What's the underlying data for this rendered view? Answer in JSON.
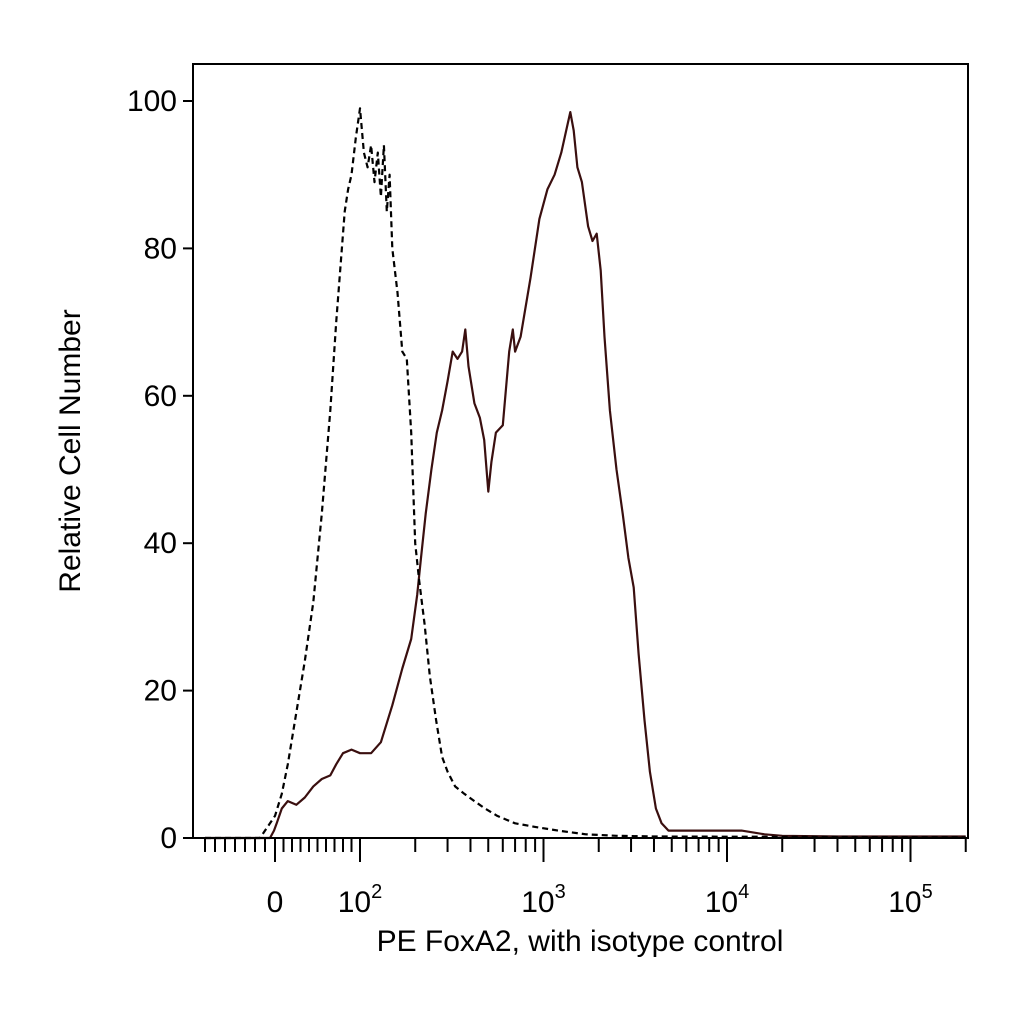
{
  "chart_data": {
    "type": "line",
    "title": "",
    "xlabel": "PE FoxA2, with isotype control",
    "ylabel": "Relative Cell Number",
    "x_scale": "biexponential",
    "xlim": [
      -70,
      200000
    ],
    "ylim": [
      0,
      105
    ],
    "grid": false,
    "legend": "none",
    "y_ticks": [
      "0",
      "20",
      "40",
      "60",
      "80",
      "100"
    ],
    "y_tick_values": [
      0,
      20,
      40,
      60,
      80,
      100
    ],
    "x_ticks": [
      {
        "base": "0",
        "exp": "",
        "value": 0
      },
      {
        "base": "10",
        "exp": "2",
        "value": 100
      },
      {
        "base": "10",
        "exp": "3",
        "value": 1000
      },
      {
        "base": "10",
        "exp": "4",
        "value": 10000
      },
      {
        "base": "10",
        "exp": "5",
        "value": 100000
      }
    ],
    "series": [
      {
        "style": "solid",
        "color": "#3a0f0f",
        "points": [
          [
            -70,
            0
          ],
          [
            -5,
            0
          ],
          [
            -1,
            1
          ],
          [
            2,
            2
          ],
          [
            8,
            4
          ],
          [
            15,
            5
          ],
          [
            25,
            4.5
          ],
          [
            35,
            5.5
          ],
          [
            45,
            7
          ],
          [
            55,
            8
          ],
          [
            65,
            8.5
          ],
          [
            72,
            10
          ],
          [
            80,
            11.5
          ],
          [
            90,
            12
          ],
          [
            100,
            11.5
          ],
          [
            115,
            11.5
          ],
          [
            130,
            13
          ],
          [
            150,
            18
          ],
          [
            170,
            23
          ],
          [
            190,
            27
          ],
          [
            205,
            33
          ],
          [
            215,
            38
          ],
          [
            228,
            44
          ],
          [
            245,
            50
          ],
          [
            262,
            55
          ],
          [
            280,
            58
          ],
          [
            300,
            62
          ],
          [
            320,
            66
          ],
          [
            340,
            65
          ],
          [
            360,
            66
          ],
          [
            375,
            69
          ],
          [
            390,
            64
          ],
          [
            420,
            59
          ],
          [
            450,
            57
          ],
          [
            475,
            54
          ],
          [
            500,
            47
          ],
          [
            520,
            51
          ],
          [
            550,
            55
          ],
          [
            600,
            56
          ],
          [
            650,
            66
          ],
          [
            680,
            69
          ],
          [
            700,
            66
          ],
          [
            750,
            68
          ],
          [
            850,
            76
          ],
          [
            950,
            84
          ],
          [
            1050,
            88
          ],
          [
            1150,
            90
          ],
          [
            1250,
            93
          ],
          [
            1330,
            96
          ],
          [
            1400,
            98.5
          ],
          [
            1460,
            96
          ],
          [
            1530,
            91
          ],
          [
            1620,
            89
          ],
          [
            1750,
            83
          ],
          [
            1850,
            81
          ],
          [
            1950,
            82
          ],
          [
            2050,
            77
          ],
          [
            2150,
            68
          ],
          [
            2300,
            58
          ],
          [
            2500,
            50
          ],
          [
            2700,
            44
          ],
          [
            2900,
            38
          ],
          [
            3100,
            34
          ],
          [
            3300,
            25
          ],
          [
            3550,
            16
          ],
          [
            3800,
            9
          ],
          [
            4100,
            4
          ],
          [
            4400,
            2
          ],
          [
            4800,
            1
          ],
          [
            5500,
            1
          ],
          [
            8000,
            1
          ],
          [
            12000,
            1
          ],
          [
            16000,
            0.5
          ],
          [
            20000,
            0.3
          ],
          [
            40000,
            0.2
          ],
          [
            200000,
            0.2
          ]
        ]
      },
      {
        "style": "dashed",
        "color": "#000000",
        "points": [
          [
            -70,
            0
          ],
          [
            -15,
            0
          ],
          [
            -10,
            1
          ],
          [
            -5,
            2
          ],
          [
            0,
            3
          ],
          [
            8,
            6
          ],
          [
            15,
            10
          ],
          [
            25,
            17
          ],
          [
            35,
            24
          ],
          [
            45,
            32
          ],
          [
            55,
            44
          ],
          [
            65,
            58
          ],
          [
            72,
            70
          ],
          [
            78,
            79
          ],
          [
            82,
            85
          ],
          [
            86,
            88
          ],
          [
            90,
            90
          ],
          [
            95,
            95
          ],
          [
            100,
            99
          ],
          [
            105,
            93
          ],
          [
            110,
            91
          ],
          [
            115,
            94
          ],
          [
            120,
            89
          ],
          [
            125,
            93
          ],
          [
            130,
            87
          ],
          [
            135,
            94
          ],
          [
            140,
            85
          ],
          [
            145,
            90
          ],
          [
            150,
            80
          ],
          [
            160,
            74
          ],
          [
            170,
            66
          ],
          [
            180,
            65
          ],
          [
            190,
            55
          ],
          [
            200,
            40
          ],
          [
            210,
            35
          ],
          [
            225,
            29
          ],
          [
            240,
            22
          ],
          [
            260,
            16
          ],
          [
            280,
            11
          ],
          [
            300,
            9
          ],
          [
            330,
            7
          ],
          [
            370,
            6
          ],
          [
            420,
            5
          ],
          [
            480,
            4
          ],
          [
            560,
            3
          ],
          [
            700,
            2
          ],
          [
            900,
            1.5
          ],
          [
            1200,
            1
          ],
          [
            1700,
            0.5
          ],
          [
            2500,
            0.3
          ],
          [
            4000,
            0.2
          ],
          [
            200000,
            0.1
          ]
        ]
      }
    ]
  }
}
